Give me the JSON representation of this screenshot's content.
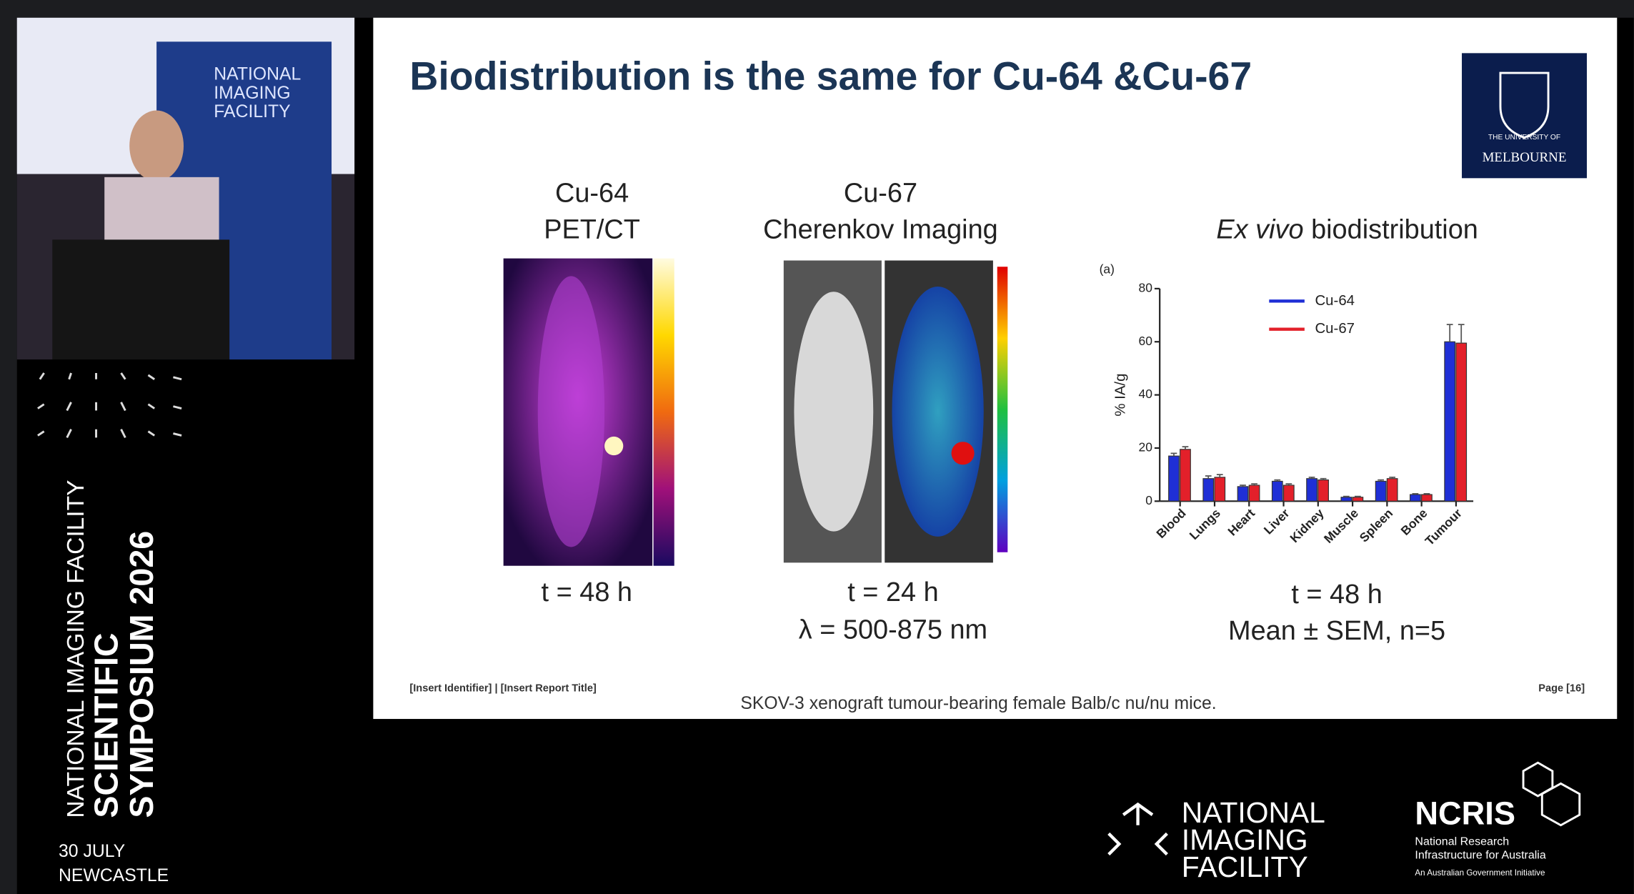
{
  "webcam": {
    "banner_lines": [
      "NATIONAL",
      "IMAGING",
      "FACILITY"
    ]
  },
  "sidebar": {
    "org": "NATIONAL IMAGING FACILITY",
    "line1": "SCIENTIFIC",
    "line2": "SYMPOSIUM 2026",
    "date": "30 JULY",
    "place": "NEWCASTLE"
  },
  "slide": {
    "title": "Biodistribution is the same for Cu-64 &Cu-67",
    "logo": {
      "line1": "THE UNIVERSITY OF",
      "line2": "MELBOURNE"
    },
    "panel1": {
      "heading1": "Cu-64",
      "heading2": "PET/CT",
      "caption1": "t = 48 h"
    },
    "panel2": {
      "heading1": "Cu-67",
      "heading2": "Cherenkov Imaging",
      "caption1": "t = 24 h",
      "caption2": "λ = 500-875 nm"
    },
    "panel3": {
      "heading_italic": "Ex vivo",
      "heading_rest": "biodistribution",
      "caption1": "t = 48 h",
      "caption2": "Mean ± SEM, n=5"
    },
    "footer_left": "[Insert Identifier] | [Insert Report Title]",
    "footer_center": "SKOV-3 xenograft tumour-bearing female Balb/c nu/nu mice.",
    "footer_right": "Page [16]"
  },
  "chart_data": {
    "type": "grouped_bar",
    "panel_label": "(a)",
    "y_label": "% IA/g",
    "categories": [
      "Blood",
      "Lungs",
      "Heart",
      "Liver",
      "Kidney",
      "Muscle",
      "Spleen",
      "Bone",
      "Tumour"
    ],
    "series": [
      {
        "name": "Cu-64",
        "color": "#1f2fd6",
        "values": [
          17,
          8.5,
          5.5,
          7.5,
          8.5,
          1.5,
          7.5,
          2.5,
          60
        ],
        "errors": [
          1,
          1,
          0.5,
          0.5,
          0.5,
          0.3,
          0.5,
          0.3,
          6.5
        ]
      },
      {
        "name": "Cu-67",
        "color": "#e3202a",
        "values": [
          19.5,
          9,
          6,
          6,
          8,
          1.5,
          8.5,
          2.5,
          59.5
        ],
        "errors": [
          1,
          1,
          0.5,
          0.5,
          0.5,
          0.3,
          0.5,
          0.3,
          7
        ]
      }
    ],
    "ylim": [
      0,
      80
    ],
    "yticks": [
      0,
      20,
      40,
      60,
      80
    ]
  },
  "banner": {
    "nif_lines": [
      "NATIONAL",
      "IMAGING",
      "FACILITY"
    ],
    "ncris": "NCRIS",
    "ncris_lines": [
      "National Research",
      "Infrastructure for Australia",
      "An Australian Government Initiative"
    ]
  }
}
